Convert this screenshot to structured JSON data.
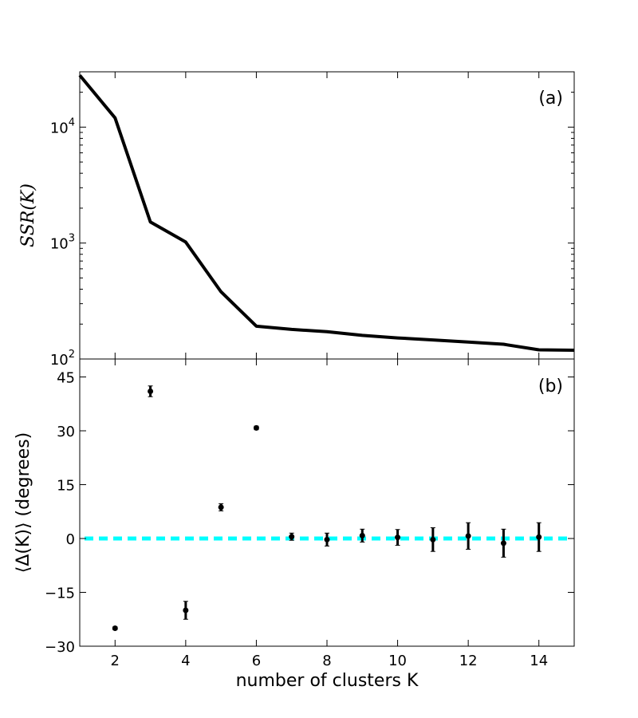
{
  "chart_data": [
    {
      "panel": "a",
      "type": "line",
      "panel_label": "(a)",
      "ylabel": "SSR(K)",
      "yscale": "log",
      "ylim": [
        100,
        30000
      ],
      "xlim": [
        1,
        15
      ],
      "yticks": [
        {
          "value": 100,
          "base": "10",
          "exp": "2"
        },
        {
          "value": 1000,
          "base": "10",
          "exp": "3"
        },
        {
          "value": 10000,
          "base": "10",
          "exp": "4"
        }
      ],
      "line_color": "#000000",
      "x": [
        1,
        2,
        3,
        4,
        5,
        6,
        7,
        8,
        9,
        10,
        11,
        12,
        13,
        14,
        15
      ],
      "y": [
        28000,
        12000,
        1520,
        1020,
        380,
        192,
        180,
        172,
        160,
        152,
        146,
        140,
        134,
        120,
        119
      ]
    },
    {
      "panel": "b",
      "type": "scatter",
      "panel_label": "(b)",
      "ylabel": "⟨Δ(K)⟩ (degrees)",
      "xlabel": "number of clusters K",
      "xlim": [
        1,
        15
      ],
      "ylim": [
        -30,
        50
      ],
      "xticks": [
        2,
        4,
        6,
        8,
        10,
        12,
        14
      ],
      "xtick_labels": [
        "2",
        "4",
        "6",
        "8",
        "10",
        "12",
        "14"
      ],
      "yticks": [
        -30,
        -15,
        0,
        15,
        30,
        45
      ],
      "ytick_labels": [
        "−30",
        "−15",
        "0",
        "15",
        "30",
        "45"
      ],
      "reference_line": {
        "y": 0,
        "color": "#00ffff",
        "style": "dashed"
      },
      "points": [
        {
          "x": 2,
          "y": -25,
          "err": 0.4
        },
        {
          "x": 3,
          "y": 41,
          "err": 1.5
        },
        {
          "x": 4,
          "y": -20,
          "err": 2.5
        },
        {
          "x": 5,
          "y": 8.7,
          "err": 1.0
        },
        {
          "x": 6,
          "y": 30.8,
          "err": 0.5
        },
        {
          "x": 7,
          "y": 0.5,
          "err": 1.0
        },
        {
          "x": 8,
          "y": -0.3,
          "err": 1.8
        },
        {
          "x": 9,
          "y": 0.8,
          "err": 1.8
        },
        {
          "x": 10,
          "y": 0.3,
          "err": 2.2
        },
        {
          "x": 11,
          "y": -0.3,
          "err": 3.3
        },
        {
          "x": 12,
          "y": 0.7,
          "err": 3.7
        },
        {
          "x": 13,
          "y": -1.3,
          "err": 3.9
        },
        {
          "x": 14,
          "y": 0.4,
          "err": 4.0
        }
      ]
    }
  ]
}
